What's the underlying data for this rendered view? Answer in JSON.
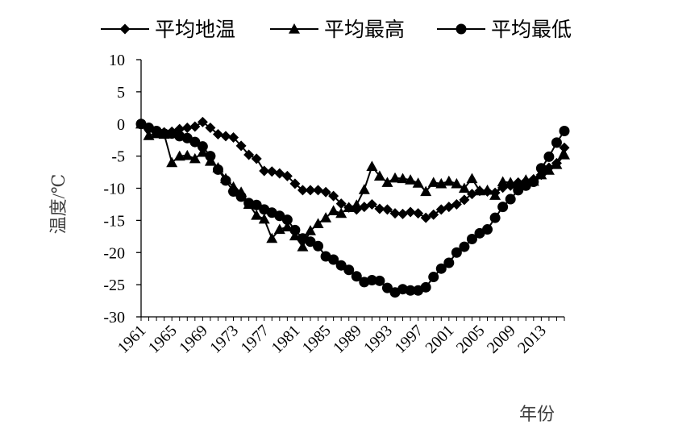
{
  "chart_data": {
    "type": "line",
    "title": "",
    "xlabel": "年份",
    "ylabel": "温度/℃",
    "ylim": [
      -30,
      10
    ],
    "yticks": [
      10,
      5,
      0,
      -5,
      -10,
      -15,
      -20,
      -25,
      -30
    ],
    "xlim": [
      1961,
      2016
    ],
    "xtick_labels": [
      "1961",
      "1965",
      "1969",
      "1973",
      "1977",
      "1981",
      "1985",
      "1989",
      "1993",
      "1997",
      "2001",
      "2005",
      "2009",
      "2013"
    ],
    "grid": false,
    "legend_position": "top",
    "x": [
      1961,
      1962,
      1963,
      1964,
      1965,
      1966,
      1967,
      1968,
      1969,
      1970,
      1971,
      1972,
      1973,
      1974,
      1975,
      1976,
      1977,
      1978,
      1979,
      1980,
      1981,
      1982,
      1983,
      1984,
      1985,
      1986,
      1987,
      1988,
      1989,
      1990,
      1991,
      1992,
      1993,
      1994,
      1995,
      1996,
      1997,
      1998,
      1999,
      2000,
      2001,
      2002,
      2003,
      2004,
      2005,
      2006,
      2007,
      2008,
      2009,
      2010,
      2011,
      2012,
      2013,
      2014,
      2015,
      2016
    ],
    "series": [
      {
        "name": "平均地温",
        "marker": "diamond",
        "values": [
          0.0,
          -0.7,
          -1.1,
          -1.3,
          -1.2,
          -0.8,
          -0.6,
          -0.4,
          0.3,
          -0.6,
          -1.6,
          -1.9,
          -2.1,
          -3.4,
          -4.8,
          -5.4,
          -7.3,
          -7.4,
          -7.7,
          -8.1,
          -9.3,
          -10.3,
          -10.3,
          -10.3,
          -10.6,
          -11.2,
          -12.4,
          -13.0,
          -13.3,
          -12.9,
          -12.5,
          -13.2,
          -13.3,
          -13.9,
          -14.0,
          -13.7,
          -13.9,
          -14.6,
          -14.1,
          -13.3,
          -12.9,
          -12.5,
          -11.8,
          -10.9,
          -10.4,
          -10.5,
          -10.7,
          -9.9,
          -9.6,
          -9.1,
          -8.9,
          -8.6,
          -7.9,
          -6.8,
          -6.1,
          -3.7
        ],
        "color": "#000000"
      },
      {
        "name": "平均最高",
        "marker": "triangle",
        "values": [
          0.0,
          -1.8,
          -1.5,
          -1.6,
          -6.0,
          -5.0,
          -4.9,
          -5.4,
          -4.4,
          -5.8,
          -6.8,
          -8.5,
          -9.8,
          -10.6,
          -12.5,
          -14.2,
          -14.8,
          -17.8,
          -16.4,
          -16.0,
          -17.4,
          -19.1,
          -16.6,
          -15.5,
          -14.6,
          -13.5,
          -13.9,
          -13.0,
          -12.6,
          -10.2,
          -6.6,
          -8.1,
          -9.1,
          -8.4,
          -8.5,
          -8.7,
          -9.2,
          -10.5,
          -9.1,
          -9.3,
          -8.9,
          -9.3,
          -10.0,
          -8.5,
          -10.4,
          -10.3,
          -11.1,
          -9.0,
          -9.1,
          -9.3,
          -8.7,
          -8.9,
          -7.9,
          -7.2,
          -6.3,
          -4.8
        ],
        "color": "#000000"
      },
      {
        "name": "平均最低",
        "marker": "circle",
        "values": [
          0.0,
          -0.6,
          -1.1,
          -1.5,
          -1.5,
          -1.9,
          -2.2,
          -2.8,
          -3.5,
          -5.0,
          -7.1,
          -8.8,
          -10.5,
          -11.3,
          -12.3,
          -12.6,
          -13.3,
          -13.8,
          -14.3,
          -14.9,
          -16.5,
          -17.8,
          -18.3,
          -19.0,
          -20.6,
          -21.1,
          -22.0,
          -22.7,
          -23.7,
          -24.6,
          -24.3,
          -24.4,
          -25.5,
          -26.2,
          -25.7,
          -25.9,
          -25.9,
          -25.4,
          -23.8,
          -22.5,
          -21.6,
          -20.0,
          -19.1,
          -17.9,
          -17.0,
          -16.4,
          -14.6,
          -12.9,
          -11.7,
          -10.3,
          -9.6,
          -9.0,
          -6.9,
          -5.1,
          -2.9,
          -1.1
        ],
        "color": "#000000"
      }
    ]
  }
}
